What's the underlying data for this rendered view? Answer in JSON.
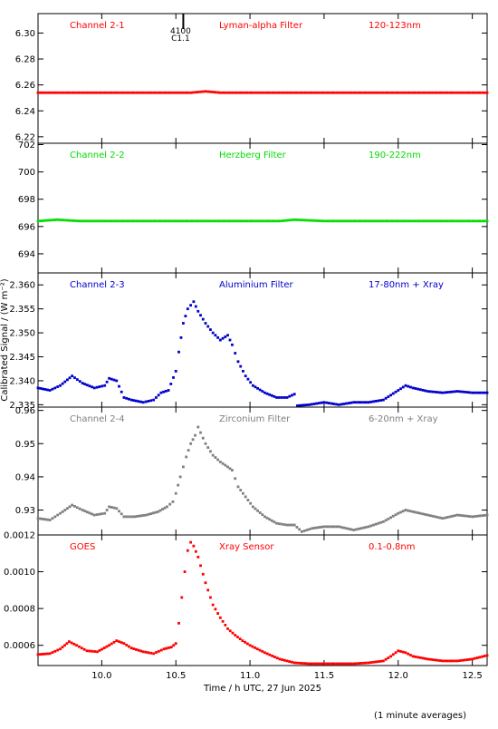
{
  "figure": {
    "ylabel": "Calibrated Signal / (W m⁻²)",
    "xlabel": "Time / h UTC, 27 Jun 2025",
    "footnote": "(1 minute averages)",
    "flare_marker": {
      "time": 10.55,
      "id": "4100",
      "class": "C1.1"
    }
  },
  "chart_data": [
    {
      "type": "scatter",
      "channel": "Channel 2-1",
      "filter": "Lyman-alpha Filter",
      "band": "120-123nm",
      "color": "#ff0000",
      "xlim": [
        9.57,
        12.6
      ],
      "ylim": [
        6.215,
        6.315
      ],
      "yticks": [
        "6.22",
        "6.24",
        "6.26",
        "6.28",
        "6.30"
      ],
      "points": [
        [
          9.57,
          6.254
        ],
        [
          9.7,
          6.254
        ],
        [
          9.85,
          6.254
        ],
        [
          10.0,
          6.254
        ],
        [
          10.2,
          6.254
        ],
        [
          10.4,
          6.254
        ],
        [
          10.6,
          6.254
        ],
        [
          10.7,
          6.255
        ],
        [
          10.8,
          6.254
        ],
        [
          11.0,
          6.254
        ],
        [
          11.2,
          6.254
        ],
        [
          11.5,
          6.254
        ],
        [
          11.8,
          6.254
        ],
        [
          12.0,
          6.254
        ],
        [
          12.2,
          6.254
        ],
        [
          12.4,
          6.254
        ],
        [
          12.6,
          6.254
        ]
      ]
    },
    {
      "type": "scatter",
      "channel": "Channel 2-2",
      "filter": "Herzberg Filter",
      "band": "190-222nm",
      "color": "#00dd00",
      "xlim": [
        9.57,
        12.6
      ],
      "ylim": [
        692.6,
        702.1
      ],
      "yticks": [
        "694",
        "696",
        "698",
        "700",
        "702"
      ],
      "points": [
        [
          9.57,
          696.4
        ],
        [
          9.7,
          696.5
        ],
        [
          9.85,
          696.4
        ],
        [
          10.0,
          696.4
        ],
        [
          10.2,
          696.4
        ],
        [
          10.4,
          696.4
        ],
        [
          10.6,
          696.4
        ],
        [
          10.8,
          696.4
        ],
        [
          11.0,
          696.4
        ],
        [
          11.2,
          696.4
        ],
        [
          11.3,
          696.5
        ],
        [
          11.5,
          696.4
        ],
        [
          11.8,
          696.4
        ],
        [
          12.0,
          696.4
        ],
        [
          12.2,
          696.4
        ],
        [
          12.4,
          696.4
        ],
        [
          12.6,
          696.4
        ]
      ]
    },
    {
      "type": "scatter",
      "channel": "Channel 2-3",
      "filter": "Aluminium Filter",
      "band": "17-80nm + Xray",
      "color": "#0000cc",
      "xlim": [
        9.57,
        12.6
      ],
      "ylim": [
        2.3345,
        2.3625
      ],
      "yticks": [
        "2.335",
        "2.340",
        "2.345",
        "2.350",
        "2.355",
        "2.360"
      ],
      "points": [
        [
          9.57,
          2.3385
        ],
        [
          9.65,
          2.338
        ],
        [
          9.72,
          2.339
        ],
        [
          9.8,
          2.341
        ],
        [
          9.87,
          2.3395
        ],
        [
          9.95,
          2.3385
        ],
        [
          10.02,
          2.339
        ],
        [
          10.05,
          2.3405
        ],
        [
          10.1,
          2.34
        ],
        [
          10.15,
          2.3365
        ],
        [
          10.2,
          2.336
        ],
        [
          10.28,
          2.3355
        ],
        [
          10.35,
          2.336
        ],
        [
          10.4,
          2.3375
        ],
        [
          10.45,
          2.338
        ],
        [
          10.5,
          2.342
        ],
        [
          10.52,
          2.346
        ],
        [
          10.55,
          2.352
        ],
        [
          10.58,
          2.355
        ],
        [
          10.62,
          2.3565
        ],
        [
          10.65,
          2.3545
        ],
        [
          10.7,
          2.352
        ],
        [
          10.75,
          2.35
        ],
        [
          10.8,
          2.3485
        ],
        [
          10.85,
          2.3495
        ],
        [
          10.88,
          2.3475
        ],
        [
          10.92,
          2.344
        ],
        [
          10.97,
          2.341
        ],
        [
          11.02,
          2.339
        ],
        [
          11.1,
          2.3375
        ],
        [
          11.18,
          2.3365
        ],
        [
          11.25,
          2.3365
        ],
        [
          11.3,
          2.3372
        ],
        [
          11.32,
          2.3348
        ],
        [
          11.4,
          2.335
        ],
        [
          11.5,
          2.3355
        ],
        [
          11.6,
          2.335
        ],
        [
          11.7,
          2.3355
        ],
        [
          11.8,
          2.3355
        ],
        [
          11.9,
          2.336
        ],
        [
          12.0,
          2.338
        ],
        [
          12.05,
          2.339
        ],
        [
          12.1,
          2.3385
        ],
        [
          12.2,
          2.3378
        ],
        [
          12.3,
          2.3375
        ],
        [
          12.4,
          2.3378
        ],
        [
          12.5,
          2.3375
        ],
        [
          12.6,
          2.3375
        ]
      ]
    },
    {
      "type": "scatter",
      "channel": "Channel 2-4",
      "filter": "Zirconium Filter",
      "band": "6-20nm + Xray",
      "color": "#808080",
      "xlim": [
        9.57,
        12.6
      ],
      "ylim": [
        0.9225,
        0.961
      ],
      "yticks": [
        "0.93",
        "0.94",
        "0.95",
        "0.96"
      ],
      "points": [
        [
          9.57,
          0.9275
        ],
        [
          9.65,
          0.927
        ],
        [
          9.72,
          0.929
        ],
        [
          9.8,
          0.9315
        ],
        [
          9.87,
          0.93
        ],
        [
          9.95,
          0.9285
        ],
        [
          10.02,
          0.929
        ],
        [
          10.05,
          0.931
        ],
        [
          10.1,
          0.9305
        ],
        [
          10.15,
          0.928
        ],
        [
          10.22,
          0.928
        ],
        [
          10.3,
          0.9285
        ],
        [
          10.38,
          0.9295
        ],
        [
          10.44,
          0.931
        ],
        [
          10.48,
          0.9325
        ],
        [
          10.5,
          0.935
        ],
        [
          10.53,
          0.94
        ],
        [
          10.57,
          0.946
        ],
        [
          10.6,
          0.95
        ],
        [
          10.63,
          0.9525
        ],
        [
          10.65,
          0.955
        ],
        [
          10.7,
          0.95
        ],
        [
          10.75,
          0.9465
        ],
        [
          10.8,
          0.9445
        ],
        [
          10.85,
          0.943
        ],
        [
          10.88,
          0.942
        ],
        [
          10.92,
          0.937
        ],
        [
          10.97,
          0.934
        ],
        [
          11.02,
          0.931
        ],
        [
          11.1,
          0.928
        ],
        [
          11.18,
          0.926
        ],
        [
          11.25,
          0.9255
        ],
        [
          11.3,
          0.9255
        ],
        [
          11.35,
          0.9235
        ],
        [
          11.42,
          0.9245
        ],
        [
          11.5,
          0.925
        ],
        [
          11.6,
          0.925
        ],
        [
          11.7,
          0.924
        ],
        [
          11.8,
          0.925
        ],
        [
          11.9,
          0.9265
        ],
        [
          12.0,
          0.929
        ],
        [
          12.05,
          0.93
        ],
        [
          12.15,
          0.929
        ],
        [
          12.3,
          0.9275
        ],
        [
          12.4,
          0.9285
        ],
        [
          12.5,
          0.928
        ],
        [
          12.6,
          0.9285
        ]
      ]
    },
    {
      "type": "scatter",
      "channel": "GOES",
      "filter": "Xray Sensor",
      "band": "0.1-0.8nm",
      "color": "#ff0000",
      "xlim": [
        9.57,
        12.6
      ],
      "ylim": [
        0.00049,
        0.0012
      ],
      "yticks": [
        "0.0006",
        "0.0008",
        "0.0010",
        "0.0012"
      ],
      "points": [
        [
          9.57,
          0.00055
        ],
        [
          9.65,
          0.000555
        ],
        [
          9.72,
          0.00058
        ],
        [
          9.78,
          0.00062
        ],
        [
          9.83,
          0.0006
        ],
        [
          9.9,
          0.00057
        ],
        [
          9.97,
          0.000565
        ],
        [
          10.05,
          0.0006
        ],
        [
          10.1,
          0.000625
        ],
        [
          10.15,
          0.00061
        ],
        [
          10.2,
          0.000585
        ],
        [
          10.28,
          0.000565
        ],
        [
          10.35,
          0.000555
        ],
        [
          10.42,
          0.00058
        ],
        [
          10.47,
          0.00059
        ],
        [
          10.5,
          0.00061
        ],
        [
          10.52,
          0.00072
        ],
        [
          10.54,
          0.00086
        ],
        [
          10.56,
          0.001
        ],
        [
          10.58,
          0.001115
        ],
        [
          10.6,
          0.00116
        ],
        [
          10.62,
          0.00114
        ],
        [
          10.65,
          0.00108
        ],
        [
          10.7,
          0.00094
        ],
        [
          10.75,
          0.00082
        ],
        [
          10.8,
          0.00075
        ],
        [
          10.85,
          0.00069
        ],
        [
          10.9,
          0.000655
        ],
        [
          10.95,
          0.000625
        ],
        [
          11.0,
          0.0006
        ],
        [
          11.1,
          0.00056
        ],
        [
          11.2,
          0.000525
        ],
        [
          11.3,
          0.000505
        ],
        [
          11.4,
          0.0005
        ],
        [
          11.5,
          0.0005
        ],
        [
          11.6,
          0.0005
        ],
        [
          11.7,
          0.0005
        ],
        [
          11.8,
          0.000505
        ],
        [
          11.9,
          0.000515
        ],
        [
          11.95,
          0.00054
        ],
        [
          12.0,
          0.00057
        ],
        [
          12.05,
          0.00056
        ],
        [
          12.1,
          0.00054
        ],
        [
          12.2,
          0.000525
        ],
        [
          12.3,
          0.000515
        ],
        [
          12.4,
          0.000515
        ],
        [
          12.5,
          0.000525
        ],
        [
          12.6,
          0.000545
        ]
      ]
    }
  ],
  "xticks": [
    "10.0",
    "10.5",
    "11.0",
    "11.5",
    "12.0",
    "12.5"
  ]
}
